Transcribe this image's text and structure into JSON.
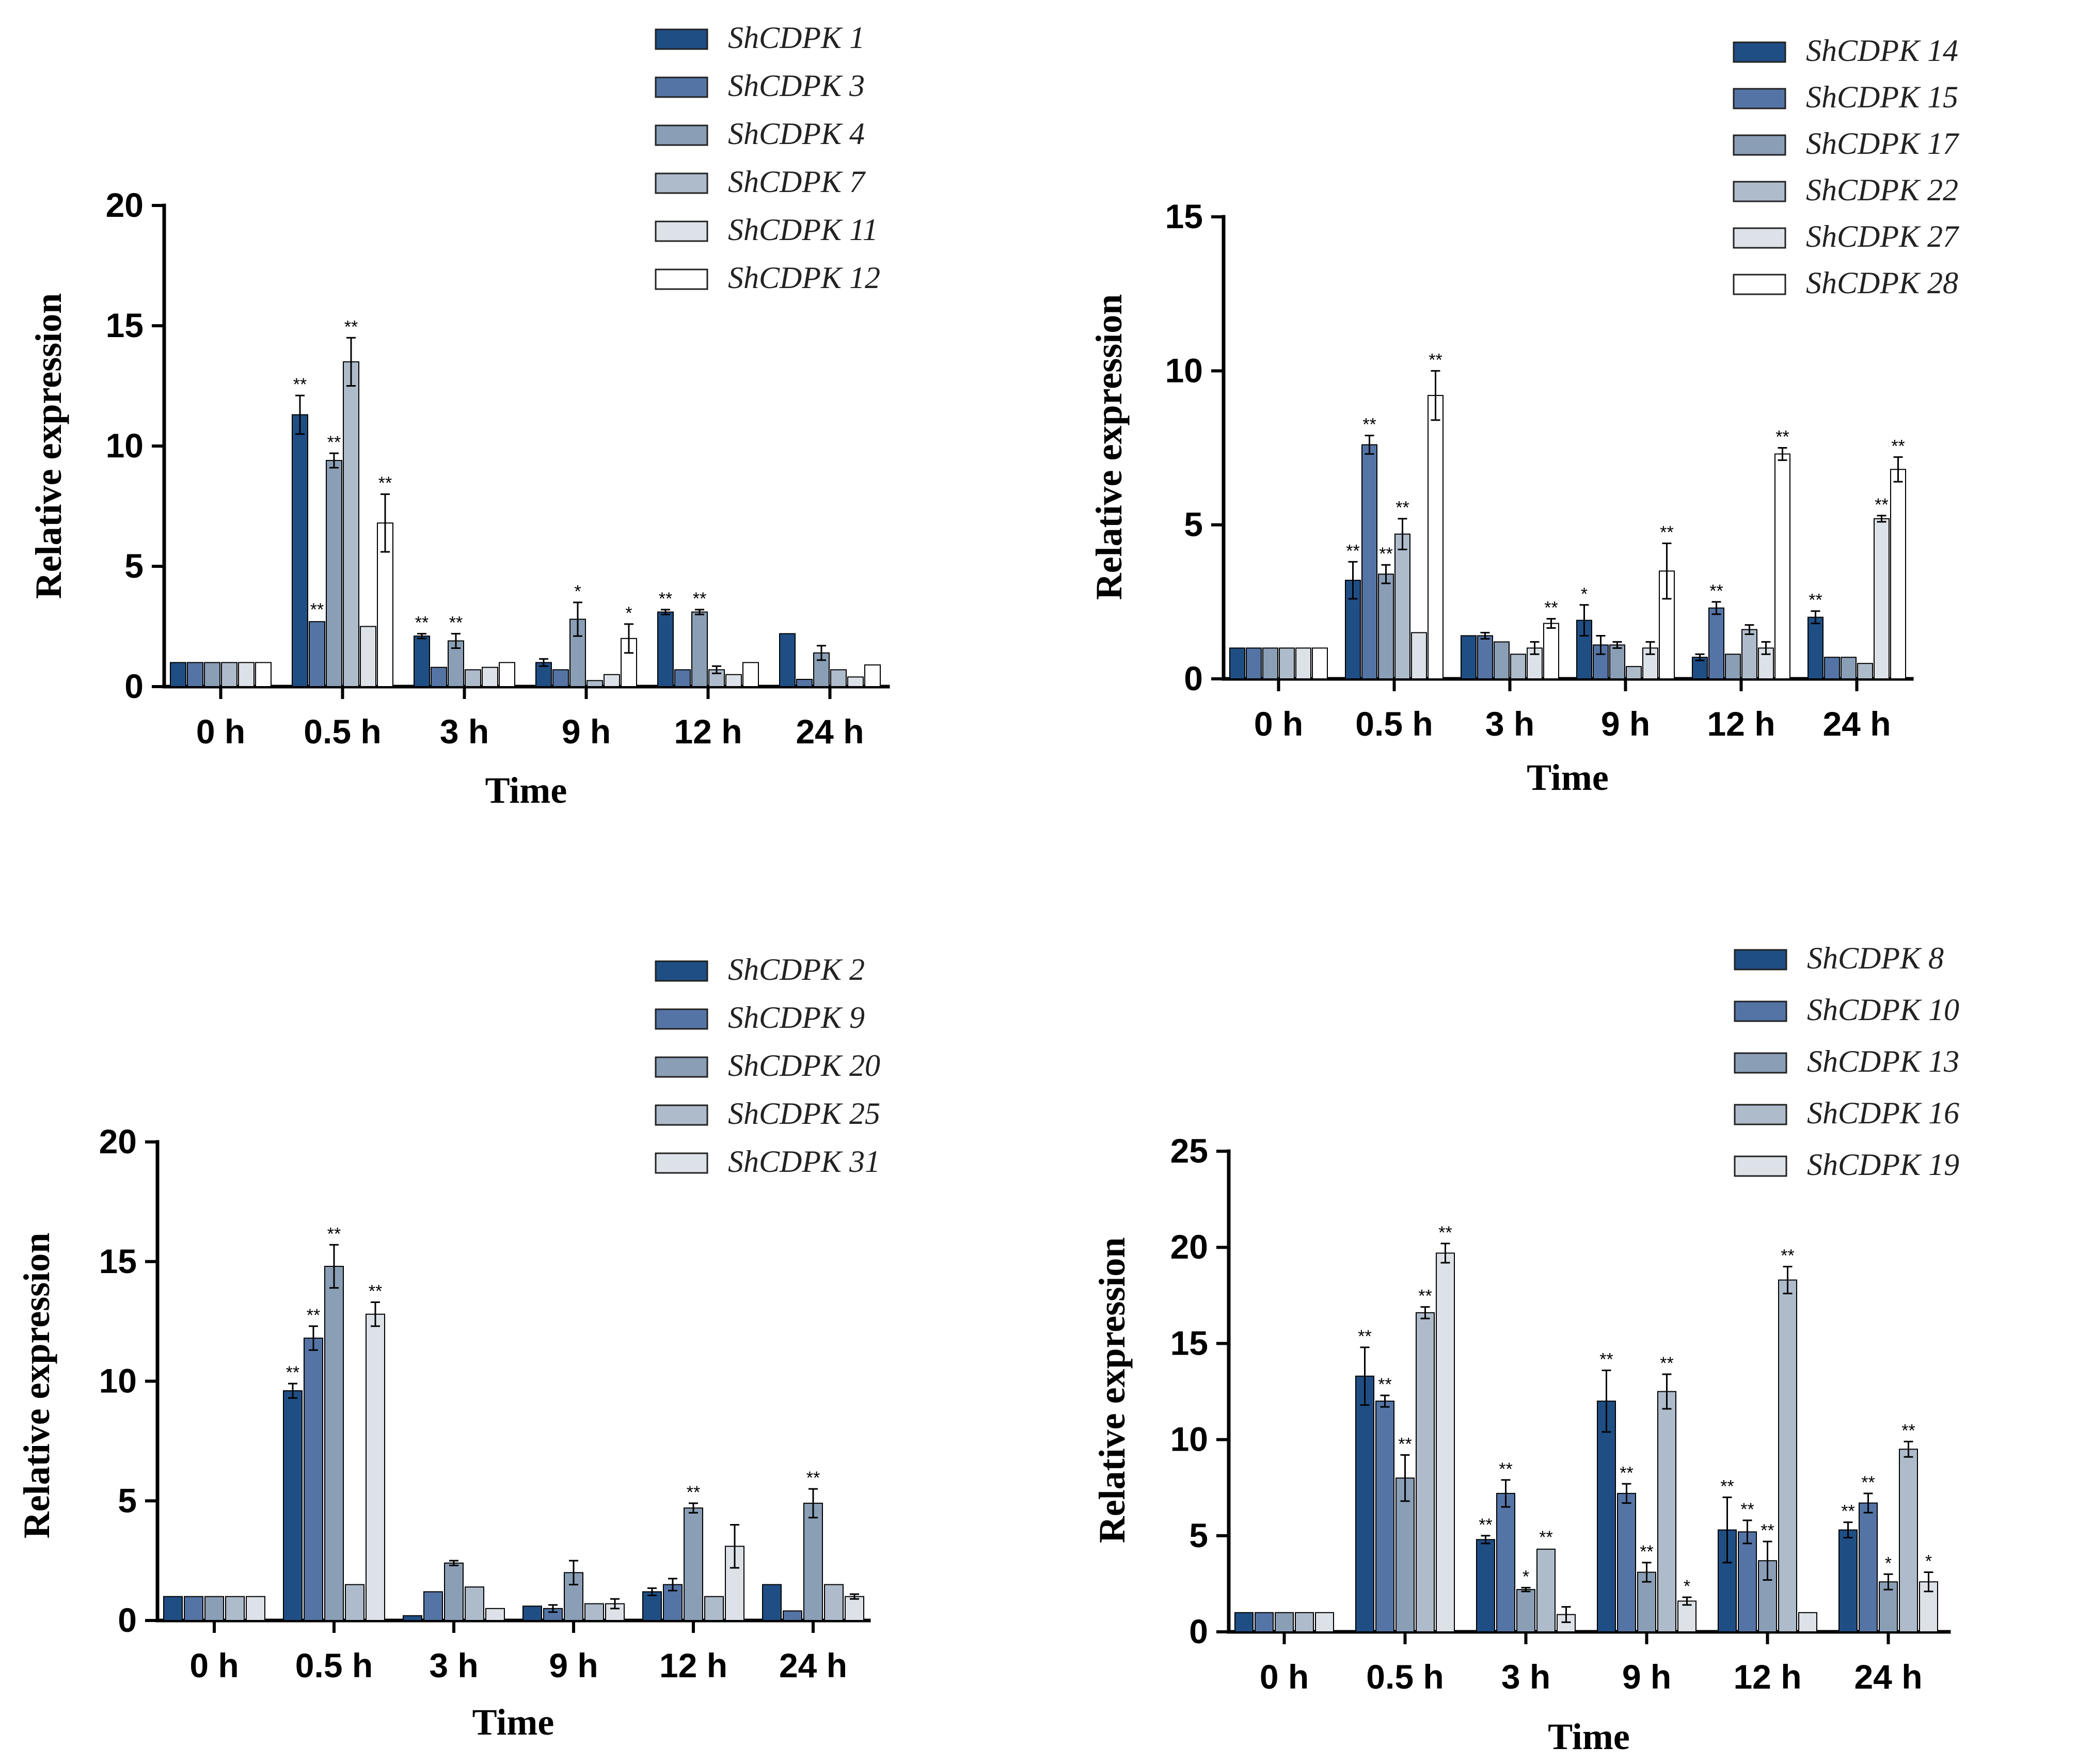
{
  "colors": {
    "c1": "#1f4e84",
    "c2": "#5574a6",
    "c3": "#8a9eb6",
    "c4": "#aebbcb",
    "c5": "#dde2e8",
    "c6": "#ffffff"
  },
  "chart_data": [
    {
      "id": "tl",
      "type": "bar",
      "title": "",
      "xlabel": "Time",
      "ylabel": "Relative expression",
      "ylim": [
        0,
        20
      ],
      "yticks": [
        "0",
        "5",
        "10",
        "15",
        "20"
      ],
      "categories": [
        "0 h",
        "0.5 h",
        "3 h",
        "9 h",
        "12 h",
        "24 h"
      ],
      "series": [
        {
          "name": "ShCDPK 1",
          "values": [
            1,
            11.3,
            2.1,
            1.0,
            3.1,
            2.2
          ],
          "errors": [
            0.05,
            0.8,
            0.1,
            0.15,
            0.1,
            0.05
          ],
          "sig": [
            "",
            "**",
            "**",
            "",
            "**",
            ""
          ]
        },
        {
          "name": "ShCDPK 3",
          "values": [
            1,
            2.7,
            0.8,
            0.7,
            0.7,
            0.3
          ],
          "errors": [
            0.05,
            0.05,
            0.05,
            0.05,
            0.05,
            0.05
          ],
          "sig": [
            "",
            "**",
            "",
            "",
            "",
            ""
          ]
        },
        {
          "name": "ShCDPK 4",
          "values": [
            1,
            9.4,
            1.9,
            2.8,
            3.1,
            1.4
          ],
          "errors": [
            0.05,
            0.3,
            0.3,
            0.7,
            0.1,
            0.3
          ],
          "sig": [
            "",
            "**",
            "**",
            "*",
            "**",
            ""
          ]
        },
        {
          "name": "ShCDPK 7",
          "values": [
            1,
            13.5,
            0.7,
            0.25,
            0.7,
            0.7
          ],
          "errors": [
            0.05,
            1.0,
            0.05,
            0.05,
            0.15,
            0.05
          ],
          "sig": [
            "",
            "**",
            "",
            "",
            "",
            ""
          ]
        },
        {
          "name": "ShCDPK 11",
          "values": [
            1,
            2.5,
            0.8,
            0.5,
            0.5,
            0.4
          ],
          "errors": [
            0.05,
            0.05,
            0.05,
            0.05,
            0.05,
            0.05
          ],
          "sig": [
            "",
            "",
            "",
            "",
            "",
            ""
          ]
        },
        {
          "name": "ShCDPK 12",
          "values": [
            1,
            6.8,
            1.0,
            2.0,
            1.0,
            0.9
          ],
          "errors": [
            0.05,
            1.2,
            0.05,
            0.6,
            0.05,
            0.05
          ],
          "sig": [
            "",
            "**",
            "",
            "*",
            "",
            ""
          ]
        }
      ]
    },
    {
      "id": "tr",
      "type": "bar",
      "title": "",
      "xlabel": "Time",
      "ylabel": "Relative expression",
      "ylim": [
        0,
        15
      ],
      "yticks": [
        "0",
        "5",
        "10",
        "15"
      ],
      "categories": [
        "0 h",
        "0.5 h",
        "3 h",
        "9 h",
        "12 h",
        "24 h"
      ],
      "series": [
        {
          "name": "ShCDPK 14",
          "values": [
            1,
            3.2,
            1.4,
            1.9,
            0.7,
            2.0
          ],
          "errors": [
            0.05,
            0.6,
            0.05,
            0.5,
            0.1,
            0.2
          ],
          "sig": [
            "",
            "**",
            "",
            "*",
            "",
            "**"
          ]
        },
        {
          "name": "ShCDPK 15",
          "values": [
            1,
            7.6,
            1.4,
            1.1,
            2.3,
            0.7
          ],
          "errors": [
            0.05,
            0.3,
            0.1,
            0.3,
            0.2,
            0.05
          ],
          "sig": [
            "",
            "**",
            "",
            "",
            "**",
            ""
          ]
        },
        {
          "name": "ShCDPK 17",
          "values": [
            1,
            3.4,
            1.2,
            1.1,
            0.8,
            0.7
          ],
          "errors": [
            0.05,
            0.3,
            0.05,
            0.1,
            0.05,
            0.05
          ],
          "sig": [
            "",
            "**",
            "",
            "",
            "",
            ""
          ]
        },
        {
          "name": "ShCDPK 22",
          "values": [
            1,
            4.7,
            0.8,
            0.4,
            1.6,
            0.5
          ],
          "errors": [
            0.05,
            0.5,
            0.05,
            0.05,
            0.15,
            0.05
          ],
          "sig": [
            "",
            "**",
            "",
            "",
            "",
            ""
          ]
        },
        {
          "name": "ShCDPK 27",
          "values": [
            1,
            1.5,
            1.0,
            1.0,
            1.0,
            5.2
          ],
          "errors": [
            0.05,
            0.05,
            0.2,
            0.2,
            0.2,
            0.1
          ],
          "sig": [
            "",
            "",
            "",
            "",
            "",
            "**"
          ]
        },
        {
          "name": "ShCDPK 28",
          "values": [
            1,
            9.2,
            1.8,
            3.5,
            7.3,
            6.8
          ],
          "errors": [
            0.05,
            0.8,
            0.15,
            0.9,
            0.2,
            0.4
          ],
          "sig": [
            "",
            "**",
            "**",
            "**",
            "**",
            "**"
          ]
        }
      ]
    },
    {
      "id": "bl",
      "type": "bar",
      "title": "",
      "xlabel": "Time",
      "ylabel": "Relative expression",
      "ylim": [
        0,
        20
      ],
      "yticks": [
        "0",
        "5",
        "10",
        "15",
        "20"
      ],
      "categories": [
        "0 h",
        "0.5 h",
        "3 h",
        "9 h",
        "12 h",
        "24 h"
      ],
      "series": [
        {
          "name": "ShCDPK 2",
          "values": [
            1,
            9.6,
            0.2,
            0.6,
            1.2,
            1.5
          ],
          "errors": [
            0.05,
            0.3,
            0.05,
            0.05,
            0.15,
            0.05
          ],
          "sig": [
            "",
            "**",
            "",
            "",
            "",
            ""
          ]
        },
        {
          "name": "ShCDPK 9",
          "values": [
            1,
            11.8,
            1.2,
            0.5,
            1.5,
            0.4
          ],
          "errors": [
            0.05,
            0.5,
            0.05,
            0.15,
            0.25,
            0.05
          ],
          "sig": [
            "",
            "**",
            "",
            "",
            "",
            ""
          ]
        },
        {
          "name": "ShCDPK 20",
          "values": [
            1,
            14.8,
            2.4,
            2.0,
            4.7,
            4.9
          ],
          "errors": [
            0.05,
            0.9,
            0.1,
            0.5,
            0.2,
            0.6
          ],
          "sig": [
            "",
            "**",
            "",
            "",
            "**",
            "**"
          ]
        },
        {
          "name": "ShCDPK 25",
          "values": [
            1,
            1.5,
            1.4,
            0.7,
            1.0,
            1.5
          ],
          "errors": [
            0.05,
            0.05,
            0.05,
            0.05,
            0.05,
            0.05
          ],
          "sig": [
            "",
            "",
            "",
            "",
            "",
            ""
          ]
        },
        {
          "name": "ShCDPK 31",
          "values": [
            1,
            12.8,
            0.5,
            0.7,
            3.1,
            1.0
          ],
          "errors": [
            0.05,
            0.5,
            0.05,
            0.2,
            0.9,
            0.1
          ],
          "sig": [
            "",
            "**",
            "",
            "",
            "",
            ""
          ]
        }
      ]
    },
    {
      "id": "br",
      "type": "bar",
      "title": "",
      "xlabel": "Time",
      "ylabel": "Relative expression",
      "ylim": [
        0,
        25
      ],
      "yticks": [
        "0",
        "5",
        "10",
        "15",
        "20",
        "25"
      ],
      "categories": [
        "0 h",
        "0.5 h",
        "3 h",
        "9 h",
        "12 h",
        "24 h"
      ],
      "series": [
        {
          "name": "ShCDPK 8",
          "values": [
            1,
            13.3,
            4.8,
            12.0,
            5.3,
            5.3
          ],
          "errors": [
            0.05,
            1.5,
            0.2,
            1.6,
            1.7,
            0.4
          ],
          "sig": [
            "",
            "**",
            "**",
            "**",
            "**",
            "**"
          ]
        },
        {
          "name": "ShCDPK 10",
          "values": [
            1,
            12.0,
            7.2,
            7.2,
            5.2,
            6.7
          ],
          "errors": [
            0.05,
            0.3,
            0.7,
            0.5,
            0.6,
            0.5
          ],
          "sig": [
            "",
            "**",
            "**",
            "**",
            "**",
            "**"
          ]
        },
        {
          "name": "ShCDPK 13",
          "values": [
            1,
            8.0,
            2.2,
            3.1,
            3.7,
            2.6
          ],
          "errors": [
            0.05,
            1.2,
            0.1,
            0.5,
            1.0,
            0.4
          ],
          "sig": [
            "",
            "**",
            "*",
            "**",
            "**",
            "*"
          ]
        },
        {
          "name": "ShCDPK 16",
          "values": [
            1,
            16.6,
            4.3,
            12.5,
            18.3,
            9.5
          ],
          "errors": [
            0.05,
            0.3,
            0.05,
            0.9,
            0.7,
            0.4
          ],
          "sig": [
            "",
            "**",
            "**",
            "**",
            "**",
            "**"
          ]
        },
        {
          "name": "ShCDPK 19",
          "values": [
            1,
            19.7,
            0.9,
            1.6,
            1.0,
            2.6
          ],
          "errors": [
            0.05,
            0.5,
            0.4,
            0.2,
            0.05,
            0.5
          ],
          "sig": [
            "",
            "**",
            "",
            "*",
            "",
            "*"
          ]
        }
      ]
    }
  ]
}
